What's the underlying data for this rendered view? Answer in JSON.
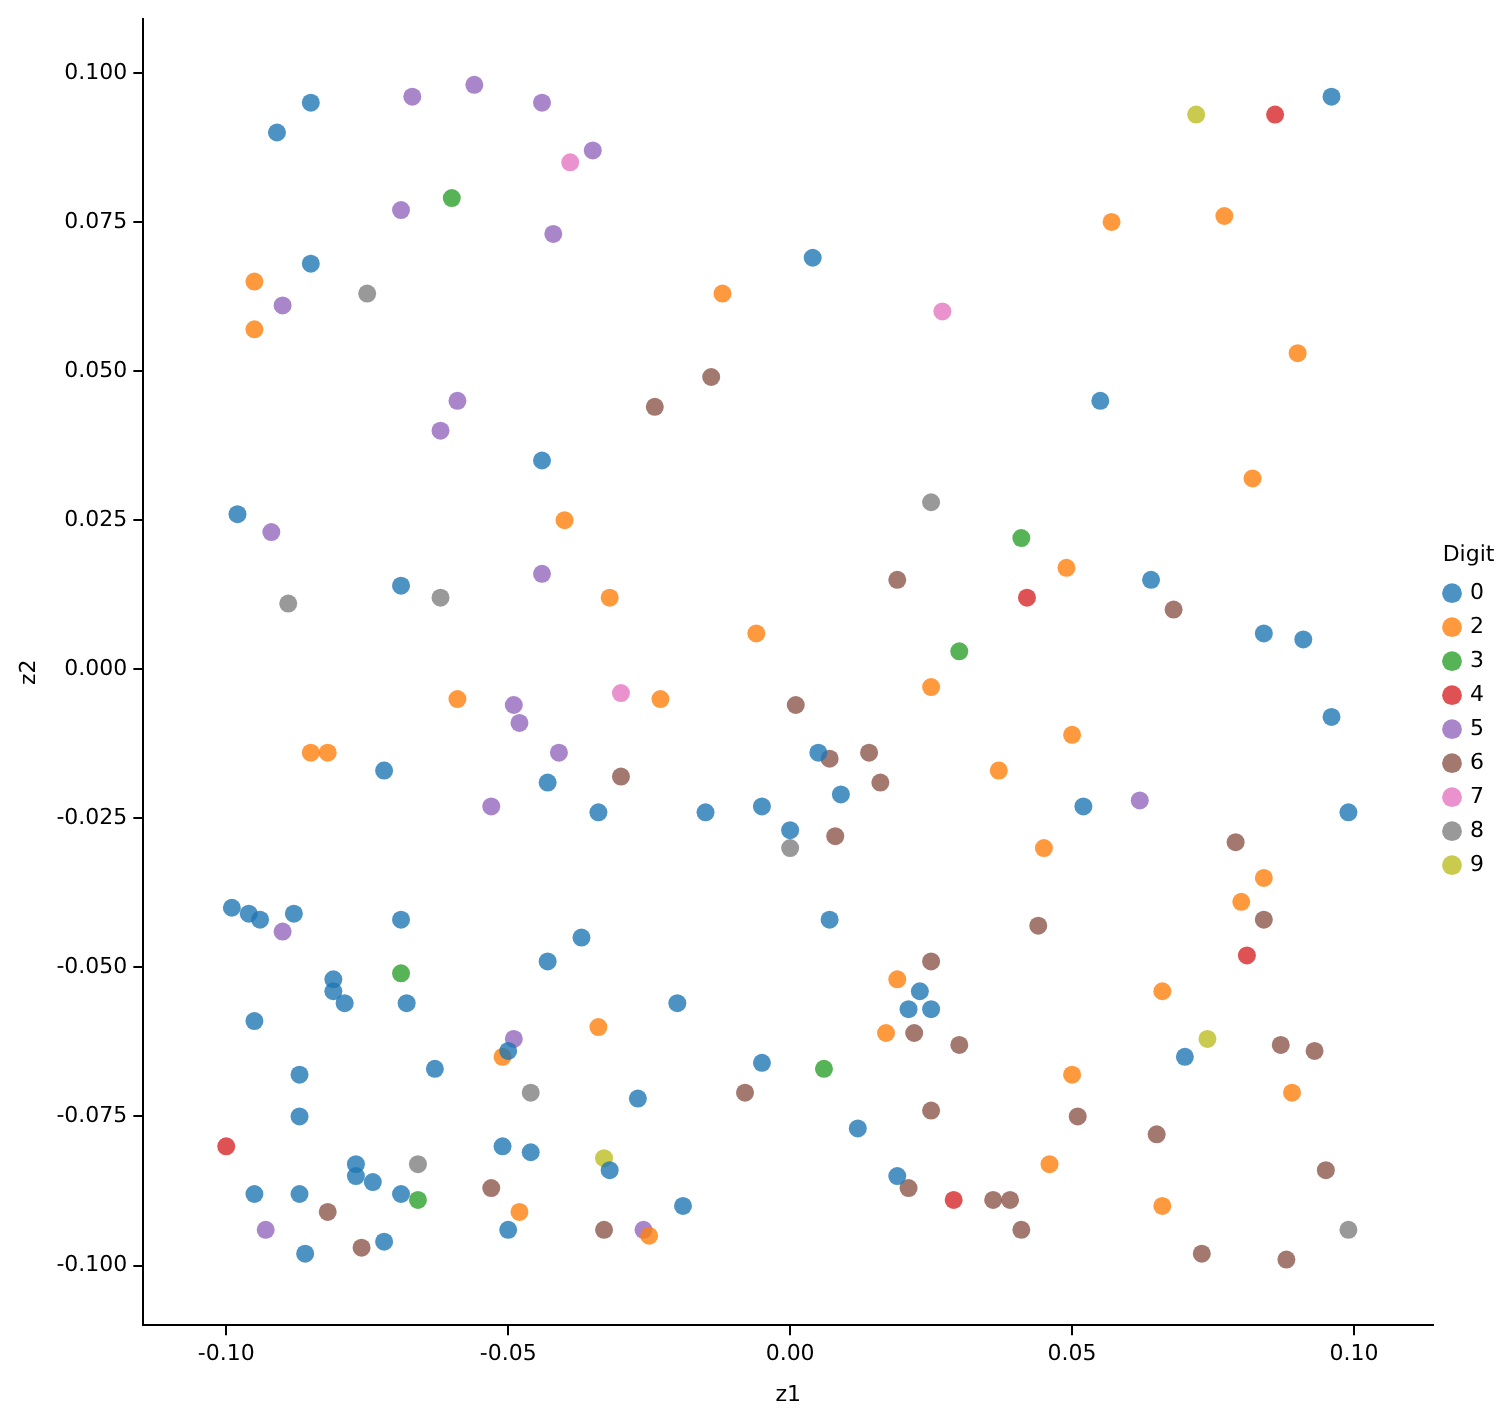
{
  "chart_data": {
    "type": "scatter",
    "xlabel": "z1",
    "ylabel": "z2",
    "legend_title": "Digit",
    "legend": "right",
    "grid": false,
    "marker": "circle",
    "xlim": [
      -0.1147,
      0.114
    ],
    "ylim": [
      -0.11,
      0.109
    ],
    "xticks": [
      {
        "value": -0.1,
        "label": "-0.10"
      },
      {
        "value": -0.05,
        "label": "-0.05"
      },
      {
        "value": 0,
        "label": "0.00"
      },
      {
        "value": 0.05,
        "label": "0.05"
      },
      {
        "value": 0.1,
        "label": "0.10"
      }
    ],
    "yticks": [
      {
        "value": -0.1,
        "label": "-0.100"
      },
      {
        "value": -0.075,
        "label": "-0.075"
      },
      {
        "value": -0.05,
        "label": "-0.050"
      },
      {
        "value": -0.025,
        "label": "-0.025"
      },
      {
        "value": 0,
        "label": "0.000"
      },
      {
        "value": 0.025,
        "label": "0.025"
      },
      {
        "value": 0.05,
        "label": "0.050"
      },
      {
        "value": 0.075,
        "label": "0.075"
      },
      {
        "value": 0.1,
        "label": "0.100"
      }
    ],
    "series": [
      {
        "name": "0",
        "color": "#1f77b4",
        "x": [
          -0.091,
          -0.085,
          -0.085,
          0.004,
          0.055,
          0.096,
          -0.044,
          -0.098,
          -0.069,
          0.064,
          0.084,
          0.091,
          0.096,
          0.099,
          0.052,
          -0.072,
          -0.043,
          -0.034,
          -0.015,
          -0.005,
          0.0,
          0.005,
          0.009,
          0.007,
          -0.099,
          -0.096,
          -0.094,
          -0.088,
          -0.069,
          -0.081,
          -0.081,
          -0.079,
          -0.068,
          -0.095,
          -0.087,
          -0.063,
          -0.037,
          -0.043,
          -0.02,
          -0.005,
          -0.027,
          0.012,
          0.023,
          0.021,
          0.025,
          0.07,
          -0.087,
          -0.077,
          -0.077,
          -0.074,
          -0.051,
          -0.046,
          -0.032,
          -0.095,
          -0.087,
          -0.069,
          -0.072,
          -0.086,
          -0.05,
          -0.019,
          0.019,
          -0.05
        ],
        "values": [
          0.09,
          0.095,
          0.068,
          0.069,
          0.045,
          0.096,
          0.035,
          0.026,
          0.014,
          0.015,
          0.006,
          0.005,
          -0.008,
          -0.024,
          -0.023,
          -0.017,
          -0.019,
          -0.024,
          -0.024,
          -0.023,
          -0.027,
          -0.014,
          -0.021,
          -0.042,
          -0.04,
          -0.041,
          -0.042,
          -0.041,
          -0.042,
          -0.052,
          -0.054,
          -0.056,
          -0.056,
          -0.059,
          -0.068,
          -0.067,
          -0.045,
          -0.049,
          -0.056,
          -0.066,
          -0.072,
          -0.077,
          -0.054,
          -0.057,
          -0.057,
          -0.065,
          -0.075,
          -0.083,
          -0.085,
          -0.086,
          -0.08,
          -0.081,
          -0.084,
          -0.088,
          -0.088,
          -0.088,
          -0.096,
          -0.098,
          -0.094,
          -0.09,
          -0.085,
          -0.064
        ]
      },
      {
        "name": "2",
        "color": "#ff7f0e",
        "x": [
          -0.095,
          -0.095,
          -0.04,
          -0.012,
          -0.032,
          -0.006,
          0.057,
          0.077,
          0.09,
          0.082,
          0.049,
          -0.059,
          -0.085,
          -0.082,
          -0.051,
          -0.048,
          -0.023,
          0.025,
          0.037,
          0.019,
          -0.034,
          0.017,
          -0.025,
          0.05,
          0.045,
          0.084,
          0.08,
          0.066,
          0.089,
          0.05,
          0.046,
          0.066
        ],
        "values": [
          0.065,
          0.057,
          0.025,
          0.063,
          0.012,
          0.006,
          0.075,
          0.076,
          0.053,
          0.032,
          0.017,
          -0.005,
          -0.014,
          -0.014,
          -0.065,
          -0.091,
          -0.005,
          -0.003,
          -0.017,
          -0.052,
          -0.06,
          -0.061,
          -0.095,
          -0.011,
          -0.03,
          -0.035,
          -0.039,
          -0.054,
          -0.071,
          -0.068,
          -0.083,
          -0.09
        ]
      },
      {
        "name": "3",
        "color": "#2ca02c",
        "x": [
          -0.06,
          0.03,
          0.041,
          -0.069,
          -0.066,
          0.006
        ],
        "values": [
          0.079,
          0.003,
          0.022,
          -0.051,
          -0.089,
          -0.067
        ]
      },
      {
        "name": "4",
        "color": "#d62728",
        "x": [
          0.086,
          0.042,
          -0.1,
          0.029,
          0.081
        ],
        "values": [
          0.093,
          0.012,
          -0.08,
          -0.089,
          -0.048
        ]
      },
      {
        "name": "5",
        "color": "#9467bd",
        "x": [
          -0.067,
          -0.056,
          -0.044,
          -0.069,
          -0.042,
          -0.09,
          -0.059,
          -0.062,
          -0.092,
          -0.044,
          -0.035,
          -0.049,
          -0.048,
          -0.041,
          -0.053,
          -0.09,
          -0.049,
          -0.093,
          -0.026,
          0.062
        ],
        "values": [
          0.096,
          0.098,
          0.095,
          0.077,
          0.073,
          0.061,
          0.045,
          0.04,
          0.023,
          0.016,
          0.087,
          -0.006,
          -0.009,
          -0.014,
          -0.023,
          -0.044,
          -0.062,
          -0.094,
          -0.094,
          -0.022
        ]
      },
      {
        "name": "6",
        "color": "#8c564b",
        "x": [
          -0.014,
          -0.024,
          0.019,
          0.068,
          0.001,
          0.007,
          0.014,
          -0.03,
          0.016,
          0.008,
          0.025,
          0.022,
          0.03,
          -0.008,
          0.025,
          0.021,
          0.036,
          -0.033,
          -0.053,
          -0.082,
          -0.076,
          0.079,
          0.084,
          0.044,
          0.087,
          0.093,
          0.051,
          0.065,
          0.095,
          0.039,
          0.041,
          0.073,
          0.088
        ],
        "values": [
          0.049,
          0.044,
          0.015,
          0.01,
          -0.006,
          -0.015,
          -0.014,
          -0.018,
          -0.019,
          -0.028,
          -0.049,
          -0.061,
          -0.063,
          -0.071,
          -0.074,
          -0.087,
          -0.089,
          -0.094,
          -0.087,
          -0.091,
          -0.097,
          -0.029,
          -0.042,
          -0.043,
          -0.063,
          -0.064,
          -0.075,
          -0.078,
          -0.084,
          -0.089,
          -0.094,
          -0.098,
          -0.099
        ]
      },
      {
        "name": "7",
        "color": "#e377c2",
        "x": [
          -0.039,
          0.027,
          -0.03
        ],
        "values": [
          0.085,
          0.06,
          -0.004
        ]
      },
      {
        "name": "8",
        "color": "#7f7f7f",
        "x": [
          -0.075,
          -0.089,
          -0.062,
          0.025,
          0.0,
          -0.046,
          -0.066,
          0.099
        ],
        "values": [
          0.063,
          0.011,
          0.012,
          0.028,
          -0.03,
          -0.071,
          -0.083,
          -0.094
        ]
      },
      {
        "name": "9",
        "color": "#bcbd22",
        "x": [
          0.072,
          -0.033,
          0.074
        ],
        "values": [
          0.093,
          -0.082,
          -0.062
        ]
      }
    ]
  }
}
